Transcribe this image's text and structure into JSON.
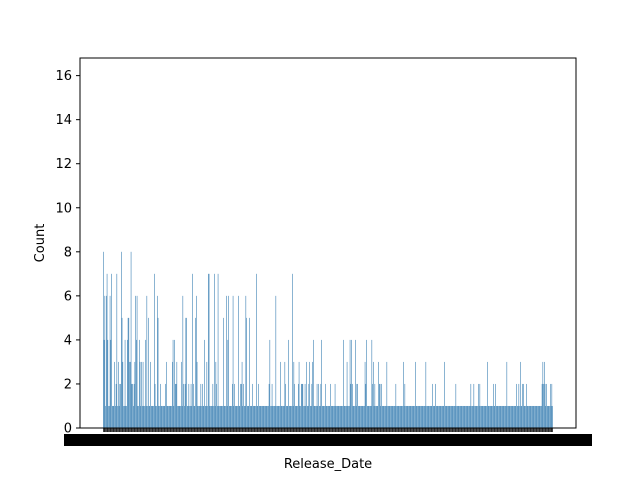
{
  "chart_data": {
    "type": "bar",
    "xlabel": "Release_Date",
    "ylabel": "Count",
    "ylim": [
      0,
      16.8
    ],
    "yticks": [
      0,
      2,
      4,
      6,
      8,
      10,
      12,
      14,
      16
    ],
    "bar_color": "#4a8ab9",
    "bar_count": 600,
    "notable_values": [
      8,
      7,
      6,
      6,
      4,
      8,
      6,
      7,
      7,
      6,
      6,
      5,
      4,
      4,
      3,
      3,
      3,
      2,
      2,
      2
    ],
    "grid": false,
    "legend": "none"
  }
}
